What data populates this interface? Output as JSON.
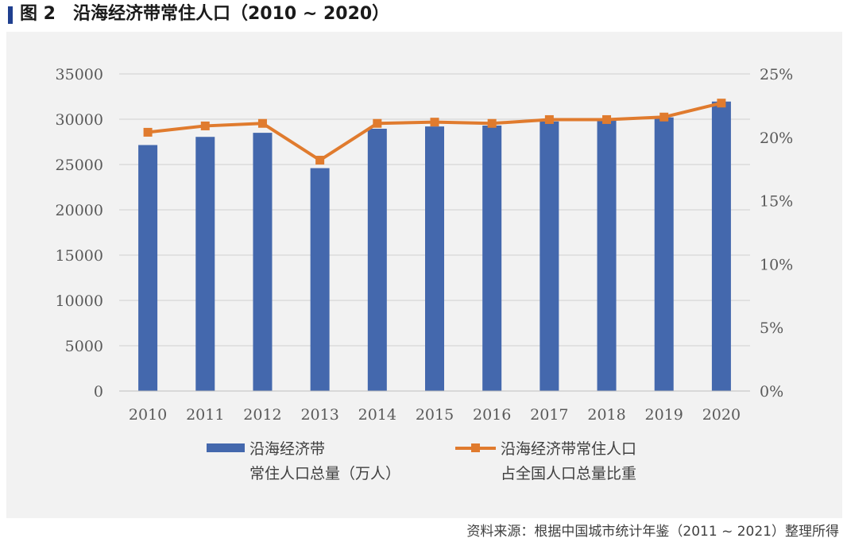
{
  "figure": {
    "title": "图 2　沿海经济带常住人口（2010 ~ 2020）",
    "source": "资料来源：根据中国城市统计年鉴（2011 ~ 2021）整理所得"
  },
  "colors": {
    "bar": "#4468ad",
    "line": "#e07b2e",
    "panel": "#f2f2f2",
    "accent": "#1f3f8f"
  },
  "chart_data": {
    "type": "bar+line",
    "categories": [
      "2010",
      "2011",
      "2012",
      "2013",
      "2014",
      "2015",
      "2016",
      "2017",
      "2018",
      "2019",
      "2020"
    ],
    "y_left": {
      "ylim": [
        0,
        35000
      ],
      "ticks": [
        0,
        5000,
        10000,
        15000,
        20000,
        25000,
        30000,
        35000
      ],
      "tick_labels": [
        "0",
        "5000",
        "10000",
        "15000",
        "20000",
        "25000",
        "30000",
        "35000"
      ]
    },
    "y_right": {
      "ylim": [
        0,
        25
      ],
      "ticks": [
        0,
        5,
        10,
        15,
        20,
        25
      ],
      "tick_labels": [
        "0%",
        "5%",
        "10%",
        "15%",
        "20%",
        "25%"
      ]
    },
    "grid": true,
    "legend_position": "bottom",
    "series": [
      {
        "type": "bar",
        "axis": "left",
        "legend_lines": [
          "沿海经济带",
          "常住人口总量（万人）"
        ],
        "values": [
          27150,
          28050,
          28500,
          24600,
          28950,
          29200,
          29300,
          29750,
          29900,
          30200,
          31950
        ]
      },
      {
        "type": "line",
        "axis": "right",
        "legend_lines": [
          "沿海经济带常住人口",
          "占全国人口总量比重"
        ],
        "values": [
          20.4,
          20.9,
          21.1,
          18.2,
          21.1,
          21.2,
          21.1,
          21.4,
          21.4,
          21.6,
          22.7
        ]
      }
    ]
  }
}
